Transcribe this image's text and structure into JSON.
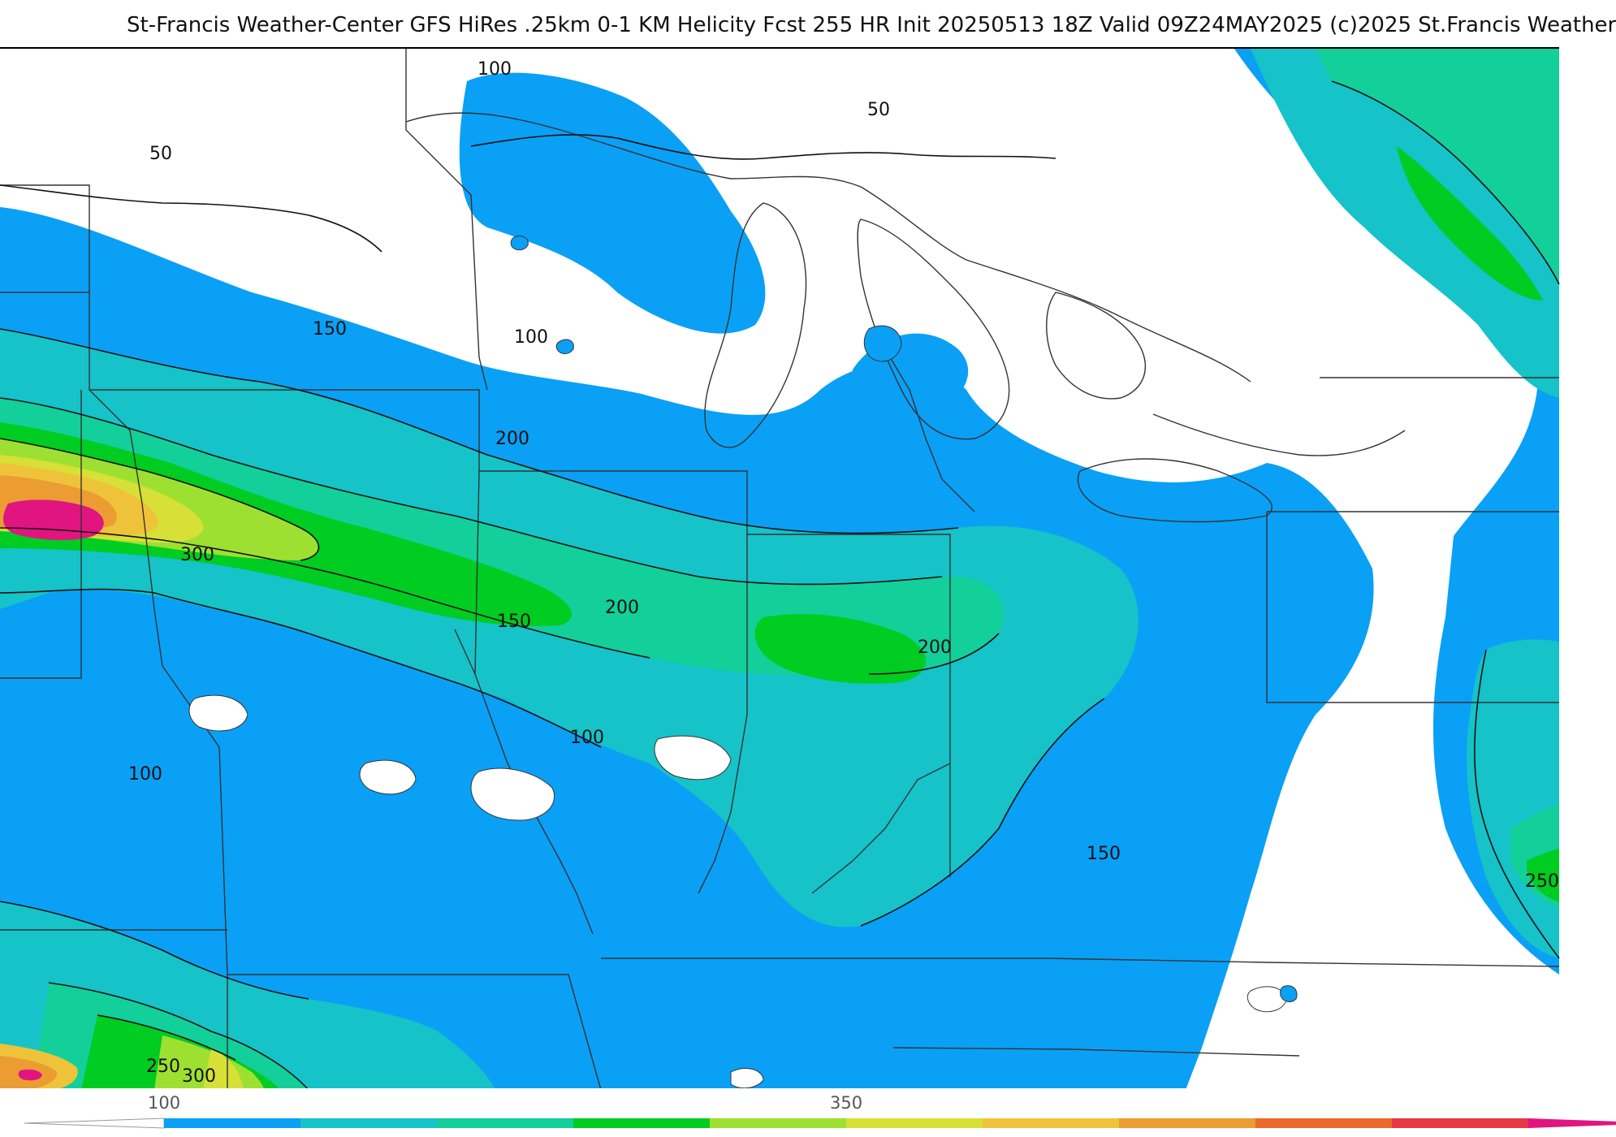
{
  "header": {
    "title": "St-Francis Weather-Center GFS HiRes .25km 0-1 KM Helicity Fcst 255 HR Init 20250513 18Z  Valid 09Z24MAY2025    (c)2025 St.Francis Weather"
  },
  "map": {
    "contour_labels": [
      "100",
      "50",
      "50",
      "150",
      "100",
      "200",
      "300",
      "200",
      "150",
      "200",
      "100",
      "100",
      "150",
      "250",
      "250",
      "300"
    ]
  },
  "colorbar": {
    "ticks": [
      "100",
      "350"
    ],
    "colors": [
      "#0aa0f5",
      "#15c3c8",
      "#13cf9a",
      "#00cc22",
      "#9ee031",
      "#d6e036",
      "#eec33a",
      "#eb9c33",
      "#ea6a2b",
      "#e73845",
      "#e0157f"
    ]
  },
  "palette": {
    "land": "#ffffff",
    "band_50_100": "#0aa0f5",
    "band_100_150": "#15c3c8",
    "band_150_200": "#13cf9a",
    "band_200_250": "#00cc22",
    "band_250_300": "#9ee031",
    "band_300_350": "#d6e036",
    "band_350_400": "#eec33a",
    "band_400_450": "#eb9c33",
    "band_max": "#e0157f"
  }
}
